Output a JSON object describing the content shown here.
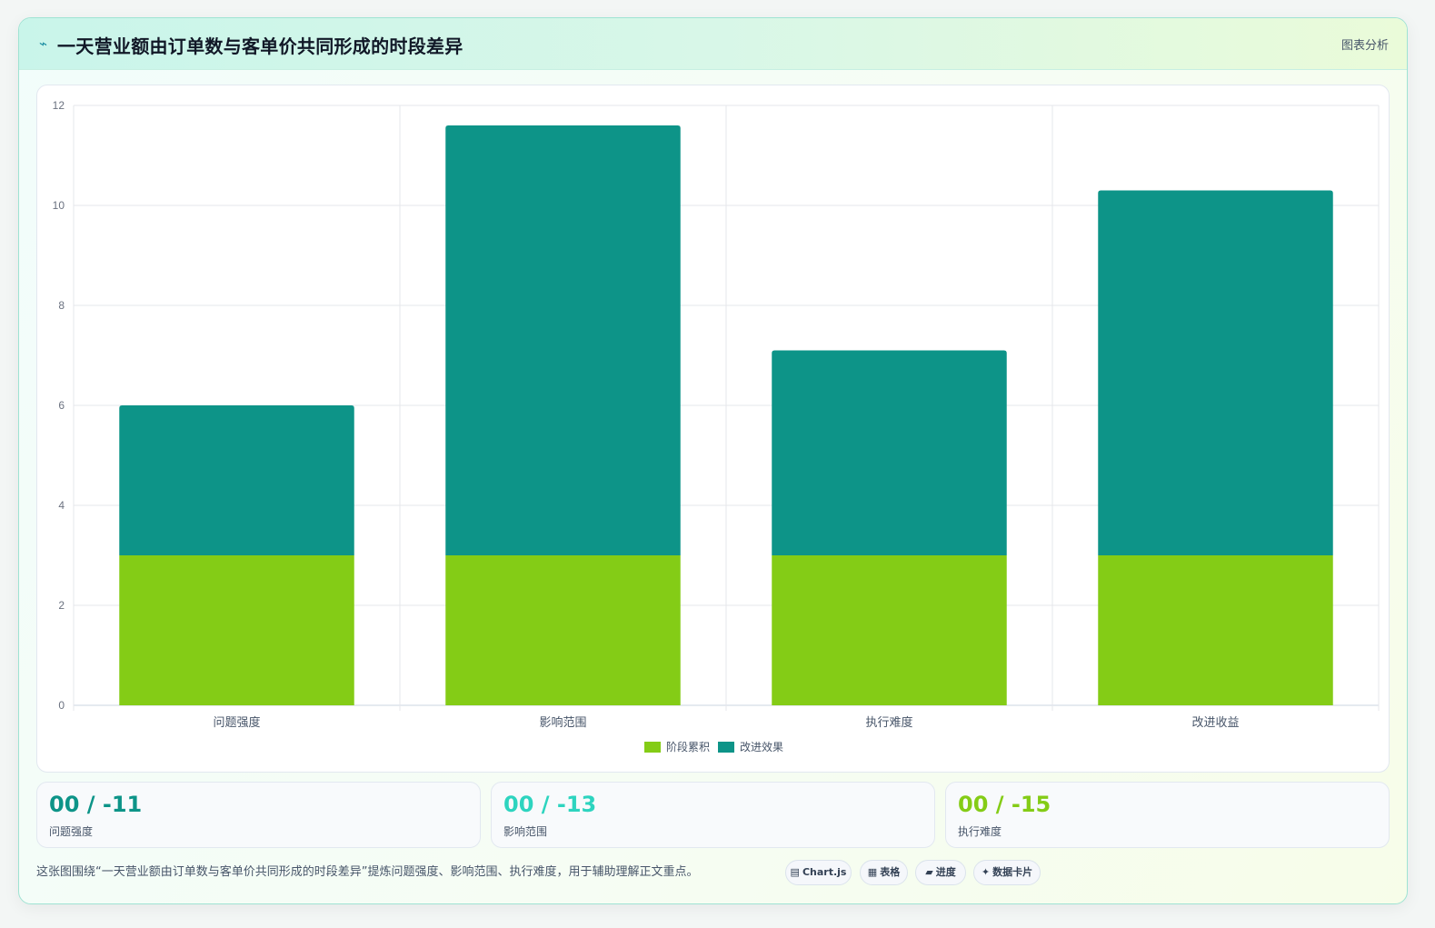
{
  "header": {
    "icon": "bolt-icon",
    "title": "一天营业额由订单数与客单价共同形成的时段差异",
    "link_label": "图表分析"
  },
  "chart_data": {
    "type": "bar",
    "stacked": true,
    "categories": [
      "问题强度",
      "影响范围",
      "执行难度",
      "改进收益"
    ],
    "series": [
      {
        "name": "阶段累积",
        "color": "#84cc16",
        "values": [
          3,
          3,
          3,
          3
        ]
      },
      {
        "name": "改进效果",
        "color": "#0d9488",
        "values": [
          3,
          8.6,
          4.1,
          7.3
        ]
      }
    ],
    "ylim": [
      0,
      12
    ],
    "yticks": [
      0,
      2,
      4,
      6,
      8,
      10,
      12
    ],
    "grid": true,
    "legend_position": "bottom"
  },
  "kpis": [
    {
      "value": "00 / -11",
      "label": "问题强度",
      "color": "#0d9488"
    },
    {
      "value": "00 / -13",
      "label": "影响范围",
      "color": "#2dd4bf"
    },
    {
      "value": "00 / -15",
      "label": "执行难度",
      "color": "#84cc16"
    }
  ],
  "footer": {
    "text": "这张图围绕“一天营业额由订单数与客单价共同形成的时段差异”提炼问题强度、影响范围、执行难度，用于辅助理解正文重点。"
  },
  "tags": [
    {
      "icon": "▤",
      "icon_name": "chart-icon",
      "label": "Chart.js"
    },
    {
      "icon": "▦",
      "icon_name": "table-icon",
      "label": "表格"
    },
    {
      "icon": "▰",
      "icon_name": "progress-icon",
      "label": "进度"
    },
    {
      "icon": "✦",
      "icon_name": "sparkle-icon",
      "label": "数据卡片"
    }
  ]
}
